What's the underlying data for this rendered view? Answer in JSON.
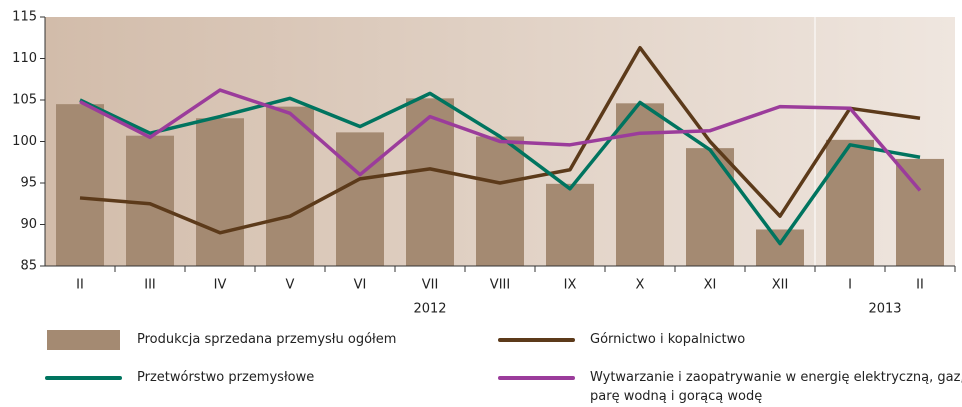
{
  "chart_data": {
    "type": "combo",
    "categories": [
      "II",
      "III",
      "IV",
      "V",
      "VI",
      "VII",
      "VIII",
      "IX",
      "X",
      "XI",
      "XII",
      "I",
      "II"
    ],
    "years": [
      {
        "label": "2012",
        "start": 0,
        "end": 10
      },
      {
        "label": "2013",
        "start": 11,
        "end": 12
      }
    ],
    "ylim": [
      85,
      115
    ],
    "yticks": [
      85,
      90,
      95,
      100,
      105,
      110,
      115
    ],
    "series": [
      {
        "name": "Produkcja sprzedana przemysłu ogółem",
        "kind": "bar",
        "color": "#a48a72",
        "values": [
          104.5,
          100.7,
          102.8,
          104.2,
          101.1,
          105.2,
          100.6,
          94.9,
          104.6,
          99.2,
          89.4,
          100.2,
          97.9
        ]
      },
      {
        "name": "Górnictwo i kopalnictwo",
        "kind": "line",
        "color": "#5c3a1a",
        "values": [
          93.2,
          92.5,
          89.0,
          91.0,
          95.5,
          96.7,
          95.0,
          96.6,
          111.3,
          100.0,
          91.0,
          104.0,
          102.8
        ]
      },
      {
        "name": "Przetwórstwo przemysłowe",
        "kind": "line",
        "color": "#00745f",
        "values": [
          105.0,
          101.0,
          103.0,
          105.2,
          101.8,
          105.8,
          100.6,
          94.3,
          104.7,
          99.0,
          87.7,
          99.6,
          98.1
        ]
      },
      {
        "name": "Wytwarzanie i zaopatrywanie w energię elektryczną, gaz, parę wodną i gorącą wodę",
        "kind": "line",
        "color": "#9b3c9b",
        "values": [
          104.8,
          100.5,
          106.2,
          103.4,
          96.0,
          103.0,
          100.0,
          99.6,
          101.0,
          101.3,
          104.2,
          104.0,
          94.1
        ]
      }
    ]
  }
}
